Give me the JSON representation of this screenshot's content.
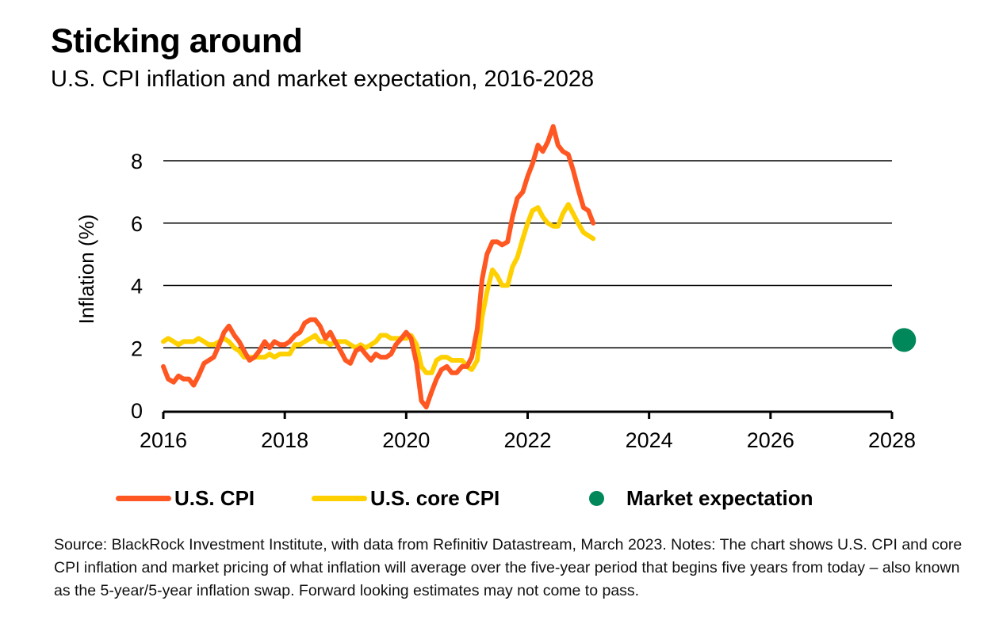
{
  "header": {
    "title": "Sticking around",
    "subtitle": "U.S. CPI inflation and market expectation, 2016-2028"
  },
  "chart_data": {
    "type": "line",
    "title": "Sticking around",
    "subtitle": "U.S. CPI inflation and market expectation, 2016-2028",
    "xlabel": "",
    "ylabel": "Inflation (%)",
    "xlim": [
      2016,
      2028.4
    ],
    "ylim": [
      0,
      9
    ],
    "x_ticks": [
      "2016",
      "2018",
      "2020",
      "2022",
      "2024",
      "2026",
      "2028"
    ],
    "x_tick_values": [
      2016,
      2018,
      2020,
      2022,
      2024,
      2026,
      2028
    ],
    "y_ticks": [
      "0",
      "2",
      "4",
      "6",
      "8"
    ],
    "y_tick_values": [
      0,
      2,
      4,
      6,
      8
    ],
    "grid": "horizontal",
    "legend_position": "bottom",
    "series": [
      {
        "name": "U.S. CPI",
        "color": "#FF5722",
        "x": [
          2016.0,
          2016.08,
          2016.17,
          2016.25,
          2016.33,
          2016.42,
          2016.5,
          2016.58,
          2016.67,
          2016.75,
          2016.83,
          2016.92,
          2017.0,
          2017.08,
          2017.17,
          2017.25,
          2017.33,
          2017.42,
          2017.5,
          2017.58,
          2017.67,
          2017.75,
          2017.83,
          2017.92,
          2018.0,
          2018.08,
          2018.17,
          2018.25,
          2018.33,
          2018.42,
          2018.5,
          2018.58,
          2018.67,
          2018.75,
          2018.83,
          2018.92,
          2019.0,
          2019.08,
          2019.17,
          2019.25,
          2019.33,
          2019.42,
          2019.5,
          2019.58,
          2019.67,
          2019.75,
          2019.83,
          2019.92,
          2020.0,
          2020.08,
          2020.17,
          2020.25,
          2020.33,
          2020.42,
          2020.5,
          2020.58,
          2020.67,
          2020.75,
          2020.83,
          2020.92,
          2021.0,
          2021.08,
          2021.17,
          2021.25,
          2021.33,
          2021.42,
          2021.5,
          2021.58,
          2021.67,
          2021.75,
          2021.83,
          2021.92,
          2022.0,
          2022.08,
          2022.17,
          2022.25,
          2022.33,
          2022.42,
          2022.5,
          2022.58,
          2022.67,
          2022.75,
          2022.83,
          2022.92,
          2023.0,
          2023.08
        ],
        "values": [
          1.4,
          1.0,
          0.9,
          1.1,
          1.0,
          1.0,
          0.8,
          1.1,
          1.5,
          1.6,
          1.7,
          2.1,
          2.5,
          2.7,
          2.4,
          2.2,
          1.9,
          1.6,
          1.7,
          1.9,
          2.2,
          2.0,
          2.2,
          2.1,
          2.1,
          2.2,
          2.4,
          2.5,
          2.8,
          2.9,
          2.9,
          2.7,
          2.3,
          2.5,
          2.2,
          1.9,
          1.6,
          1.5,
          1.9,
          2.0,
          1.8,
          1.6,
          1.8,
          1.7,
          1.7,
          1.8,
          2.1,
          2.3,
          2.5,
          2.3,
          1.5,
          0.3,
          0.1,
          0.6,
          1.0,
          1.3,
          1.4,
          1.2,
          1.2,
          1.4,
          1.4,
          1.7,
          2.6,
          4.2,
          5.0,
          5.4,
          5.4,
          5.3,
          5.4,
          6.2,
          6.8,
          7.0,
          7.5,
          7.9,
          8.5,
          8.3,
          8.6,
          9.1,
          8.5,
          8.3,
          8.2,
          7.7,
          7.1,
          6.5,
          6.4,
          6.0
        ]
      },
      {
        "name": "U.S. core CPI",
        "color": "#FFD000",
        "x": [
          2016.0,
          2016.08,
          2016.17,
          2016.25,
          2016.33,
          2016.42,
          2016.5,
          2016.58,
          2016.67,
          2016.75,
          2016.83,
          2016.92,
          2017.0,
          2017.08,
          2017.17,
          2017.25,
          2017.33,
          2017.42,
          2017.5,
          2017.58,
          2017.67,
          2017.75,
          2017.83,
          2017.92,
          2018.0,
          2018.08,
          2018.17,
          2018.25,
          2018.33,
          2018.42,
          2018.5,
          2018.58,
          2018.67,
          2018.75,
          2018.83,
          2018.92,
          2019.0,
          2019.08,
          2019.17,
          2019.25,
          2019.33,
          2019.42,
          2019.5,
          2019.58,
          2019.67,
          2019.75,
          2019.83,
          2019.92,
          2020.0,
          2020.08,
          2020.17,
          2020.25,
          2020.33,
          2020.42,
          2020.5,
          2020.58,
          2020.67,
          2020.75,
          2020.83,
          2020.92,
          2021.0,
          2021.08,
          2021.17,
          2021.25,
          2021.33,
          2021.42,
          2021.5,
          2021.58,
          2021.67,
          2021.75,
          2021.83,
          2021.92,
          2022.0,
          2022.08,
          2022.17,
          2022.25,
          2022.33,
          2022.42,
          2022.5,
          2022.58,
          2022.67,
          2022.75,
          2022.83,
          2022.92,
          2023.0,
          2023.08
        ],
        "values": [
          2.2,
          2.3,
          2.2,
          2.1,
          2.2,
          2.2,
          2.2,
          2.3,
          2.2,
          2.1,
          2.1,
          2.2,
          2.3,
          2.2,
          2.0,
          1.9,
          1.7,
          1.7,
          1.7,
          1.7,
          1.7,
          1.8,
          1.7,
          1.8,
          1.8,
          1.8,
          2.1,
          2.1,
          2.2,
          2.3,
          2.4,
          2.2,
          2.2,
          2.1,
          2.2,
          2.2,
          2.2,
          2.1,
          2.0,
          2.1,
          2.0,
          2.1,
          2.2,
          2.4,
          2.4,
          2.3,
          2.3,
          2.3,
          2.3,
          2.4,
          2.1,
          1.4,
          1.2,
          1.2,
          1.6,
          1.7,
          1.7,
          1.6,
          1.6,
          1.6,
          1.4,
          1.3,
          1.6,
          3.0,
          3.8,
          4.5,
          4.3,
          4.0,
          4.0,
          4.6,
          4.9,
          5.5,
          6.0,
          6.4,
          6.5,
          6.2,
          6.0,
          5.9,
          5.9,
          6.3,
          6.6,
          6.3,
          6.0,
          5.7,
          5.6,
          5.5
        ]
      },
      {
        "name": "Market expectation",
        "color": "#00875A",
        "type": "point",
        "x": [
          2028.2
        ],
        "values": [
          2.25
        ]
      }
    ]
  },
  "legend": {
    "cpi_label": "U.S. CPI",
    "core_label": "U.S. core CPI",
    "expectation_label": "Market expectation"
  },
  "footer": {
    "source": "Source: BlackRock Investment Institute, with data from Refinitiv Datastream, March 2023. Notes: The chart shows U.S. CPI  and core CPI inflation and market pricing of what inflation will average over the five-year period that begins five years from today – also known as the 5-year/5-year inflation swap. Forward looking estimates may not come to pass."
  },
  "colors": {
    "cpi": "#FF5722",
    "core": "#FFD000",
    "expectation": "#00875A",
    "grid": "#000000"
  }
}
